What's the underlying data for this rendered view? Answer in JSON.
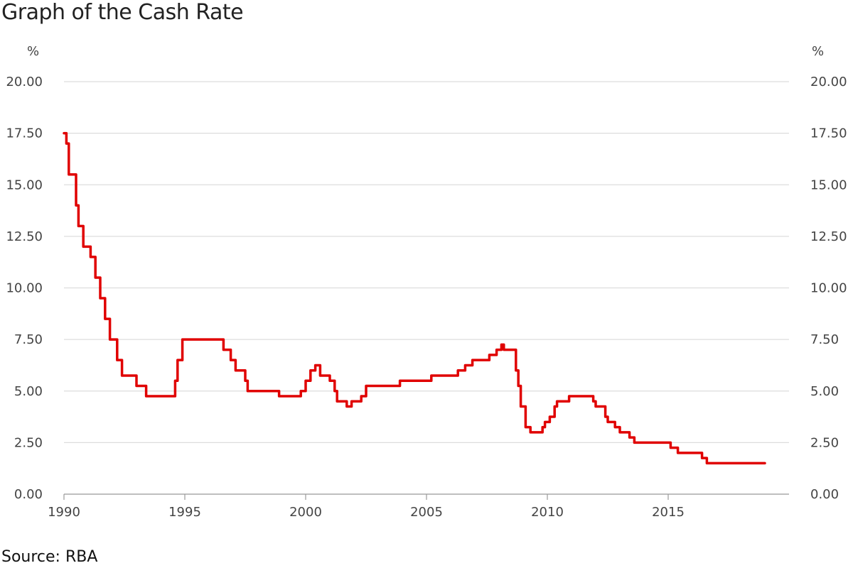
{
  "chart_data": {
    "type": "line",
    "title": "Graph of the Cash Rate",
    "source": "Source: RBA",
    "y_unit": "%",
    "ylim": [
      0,
      20
    ],
    "y_ticks": [
      "0.00",
      "2.50",
      "5.00",
      "7.50",
      "10.00",
      "12.50",
      "15.00",
      "17.50",
      "20.00"
    ],
    "y_tick_values": [
      0,
      2.5,
      5,
      7.5,
      10,
      12.5,
      15,
      17.5,
      20
    ],
    "x_ticks": [
      "1990",
      "1995",
      "2000",
      "2005",
      "2010",
      "2015"
    ],
    "x_tick_values": [
      1990,
      1995,
      2000,
      2005,
      2010,
      2015
    ],
    "xlim": [
      1990,
      2020
    ],
    "grid": true,
    "colors": {
      "series": "#e00000",
      "grid": "#dddddd",
      "axis": "#999999"
    },
    "series": [
      {
        "x": [
          1990.0,
          1990.1,
          1990.1,
          1990.2,
          1990.2,
          1990.5,
          1990.5,
          1990.6,
          1990.6,
          1990.8,
          1990.8,
          1991.1,
          1991.1,
          1991.3,
          1991.3,
          1991.5,
          1991.5,
          1991.7,
          1991.7,
          1991.9,
          1991.9,
          1992.2,
          1992.2,
          1992.4,
          1992.4,
          1993.0,
          1993.0,
          1993.4,
          1993.4,
          1994.6,
          1994.6,
          1994.7,
          1994.7,
          1994.9,
          1994.9,
          1996.6,
          1996.6,
          1996.9,
          1996.9,
          1997.1,
          1997.1,
          1997.5,
          1997.5,
          1997.6,
          1997.6,
          1998.9,
          1998.9,
          1999.8,
          1999.8,
          2000.0,
          2000.0,
          2000.2,
          2000.2,
          2000.4,
          2000.4,
          2000.6,
          2000.6,
          2001.0,
          2001.0,
          2001.2,
          2001.2,
          2001.3,
          2001.3,
          2001.7,
          2001.7,
          2001.9,
          2001.9,
          2002.3,
          2002.3,
          2002.5,
          2002.5,
          2003.9,
          2003.9,
          2005.2,
          2005.2,
          2006.3,
          2006.3,
          2006.6,
          2006.6,
          2006.9,
          2006.9,
          2007.6,
          2007.6,
          2007.9,
          2007.9,
          2008.1,
          2008.1,
          2008.2,
          2008.2,
          2008.7,
          2008.7,
          2008.8,
          2008.8,
          2008.9,
          2008.9,
          2009.1,
          2009.1,
          2009.3,
          2009.3,
          2009.8,
          2009.8,
          2009.9,
          2009.9,
          2010.1,
          2010.1,
          2010.3,
          2010.3,
          2010.4,
          2010.4,
          2010.9,
          2010.9,
          2011.9,
          2011.9,
          2012.0,
          2012.0,
          2012.4,
          2012.4,
          2012.5,
          2012.5,
          2012.8,
          2012.8,
          2013.0,
          2013.0,
          2013.4,
          2013.4,
          2013.6,
          2013.6,
          2015.1,
          2015.1,
          2015.4,
          2015.4,
          2016.4,
          2016.4,
          2016.6,
          2016.6,
          2019.0
        ],
        "y": [
          17.5,
          17.5,
          17.0,
          17.0,
          15.5,
          15.5,
          14.0,
          14.0,
          13.0,
          13.0,
          12.0,
          12.0,
          11.5,
          11.5,
          10.5,
          10.5,
          9.5,
          9.5,
          8.5,
          8.5,
          7.5,
          7.5,
          6.5,
          6.5,
          5.75,
          5.75,
          5.25,
          5.25,
          4.75,
          4.75,
          5.5,
          5.5,
          6.5,
          6.5,
          7.5,
          7.5,
          7.0,
          7.0,
          6.5,
          6.5,
          6.0,
          6.0,
          5.5,
          5.5,
          5.0,
          5.0,
          4.75,
          4.75,
          5.0,
          5.0,
          5.5,
          5.5,
          6.0,
          6.0,
          6.25,
          6.25,
          5.75,
          5.75,
          5.5,
          5.5,
          5.0,
          5.0,
          4.5,
          4.5,
          4.25,
          4.25,
          4.5,
          4.5,
          4.75,
          4.75,
          5.25,
          5.25,
          5.5,
          5.5,
          5.75,
          5.75,
          6.0,
          6.0,
          6.25,
          6.25,
          6.5,
          6.5,
          6.75,
          6.75,
          7.0,
          7.0,
          7.25,
          7.25,
          7.0,
          7.0,
          6.0,
          6.0,
          5.25,
          5.25,
          4.25,
          4.25,
          3.25,
          3.25,
          3.0,
          3.0,
          3.25,
          3.25,
          3.5,
          3.5,
          3.75,
          3.75,
          4.25,
          4.25,
          4.5,
          4.5,
          4.75,
          4.75,
          4.5,
          4.5,
          4.25,
          4.25,
          3.75,
          3.75,
          3.5,
          3.5,
          3.25,
          3.25,
          3.0,
          3.0,
          2.75,
          2.75,
          2.5,
          2.5,
          2.25,
          2.25,
          2.0,
          2.0,
          1.75,
          1.75,
          1.5,
          1.5
        ]
      }
    ]
  }
}
